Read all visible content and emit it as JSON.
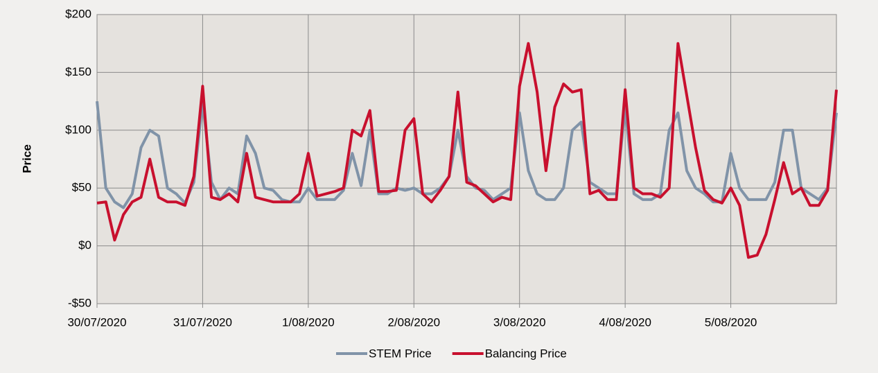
{
  "chart_data": {
    "type": "line",
    "y_label": "Price",
    "x": [
      0,
      2,
      4,
      6,
      8,
      10,
      12,
      14,
      16,
      18,
      20,
      22,
      24,
      26,
      28,
      30,
      32,
      34,
      36,
      38,
      40,
      42,
      44,
      46,
      48,
      50,
      52,
      54,
      56,
      58,
      60,
      62,
      64,
      66,
      68,
      70,
      72,
      74,
      76,
      78,
      80,
      82,
      84,
      86,
      88,
      90,
      92,
      94,
      96,
      98,
      100,
      102,
      104,
      106,
      108,
      110,
      112,
      114,
      116,
      118,
      120,
      122,
      124,
      126,
      128,
      130,
      132,
      134,
      136,
      138,
      140,
      142,
      144,
      146,
      148,
      150,
      152,
      154,
      156,
      158,
      160,
      162,
      164,
      166,
      168
    ],
    "xlim": [
      0,
      168
    ],
    "xticks": [
      {
        "value": 0,
        "label": "30/07/2020"
      },
      {
        "value": 24,
        "label": "31/07/2020"
      },
      {
        "value": 48,
        "label": "1/08/2020"
      },
      {
        "value": 72,
        "label": "2/08/2020"
      },
      {
        "value": 96,
        "label": "3/08/2020"
      },
      {
        "value": 120,
        "label": "4/08/2020"
      },
      {
        "value": 144,
        "label": "5/08/2020"
      }
    ],
    "ylim": [
      -50,
      200
    ],
    "yticks": [
      {
        "value": -50,
        "label": "-$50"
      },
      {
        "value": 0,
        "label": "$0"
      },
      {
        "value": 50,
        "label": "$50"
      },
      {
        "value": 100,
        "label": "$100"
      },
      {
        "value": 150,
        "label": "$150"
      },
      {
        "value": 200,
        "label": "$200"
      }
    ],
    "grid": true,
    "legend": "bottom",
    "series": [
      {
        "name": "STEM Price",
        "color": "#8093a8",
        "values": [
          125,
          50,
          38,
          33,
          45,
          85,
          100,
          95,
          50,
          45,
          37,
          55,
          125,
          55,
          40,
          50,
          45,
          95,
          80,
          50,
          48,
          40,
          38,
          38,
          50,
          40,
          40,
          40,
          48,
          80,
          52,
          100,
          45,
          45,
          50,
          48,
          50,
          45,
          45,
          50,
          60,
          100,
          60,
          50,
          48,
          40,
          45,
          50,
          115,
          65,
          45,
          40,
          40,
          50,
          100,
          107,
          55,
          50,
          45,
          45,
          120,
          45,
          40,
          40,
          45,
          100,
          115,
          65,
          50,
          45,
          38,
          38,
          80,
          50,
          40,
          40,
          40,
          55,
          100,
          100,
          50,
          45,
          40,
          50,
          115
        ]
      },
      {
        "name": "Balancing Price",
        "color": "#c8102e",
        "values": [
          37,
          38,
          5,
          27,
          38,
          42,
          75,
          42,
          38,
          38,
          35,
          60,
          138,
          42,
          40,
          45,
          38,
          80,
          42,
          40,
          38,
          38,
          38,
          45,
          80,
          43,
          45,
          47,
          50,
          100,
          95,
          117,
          47,
          47,
          48,
          100,
          110,
          45,
          38,
          48,
          60,
          133,
          55,
          52,
          45,
          38,
          42,
          40,
          138,
          175,
          133,
          65,
          120,
          140,
          133,
          135,
          45,
          48,
          40,
          40,
          135,
          50,
          45,
          45,
          42,
          50,
          175,
          130,
          85,
          48,
          40,
          37,
          50,
          35,
          -10,
          -8,
          10,
          40,
          72,
          45,
          50,
          35,
          35,
          48,
          135
        ]
      }
    ]
  }
}
